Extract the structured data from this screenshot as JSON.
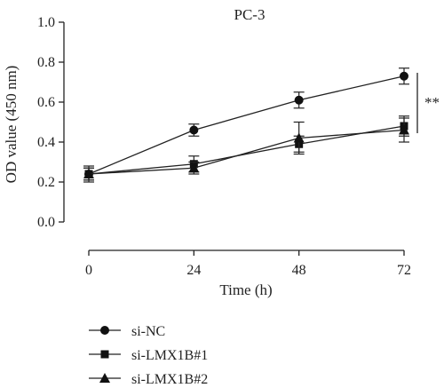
{
  "chart_data": {
    "type": "line",
    "title": "PC-3",
    "xlabel": "Time (h)",
    "ylabel": "OD value (450 nm)",
    "x": [
      0,
      24,
      48,
      72
    ],
    "x_ticks": [
      "0",
      "24",
      "48",
      "72"
    ],
    "xlim": [
      0,
      72
    ],
    "ylim": [
      0.0,
      1.0
    ],
    "y_ticks": [
      "0.0",
      "0.2",
      "0.4",
      "0.6",
      "0.8",
      "1.0"
    ],
    "grid": false,
    "legend_position": "bottom-left",
    "significance": "**",
    "series": [
      {
        "name": "si-NC",
        "marker": "circle",
        "values": [
          0.24,
          0.46,
          0.61,
          0.73
        ],
        "errors": [
          0.03,
          0.03,
          0.04,
          0.04
        ]
      },
      {
        "name": "si-LMX1B#1",
        "marker": "square",
        "values": [
          0.24,
          0.29,
          0.39,
          0.48
        ],
        "errors": [
          0.03,
          0.04,
          0.04,
          0.05
        ]
      },
      {
        "name": "si-LMX1B#2",
        "marker": "triangle",
        "values": [
          0.24,
          0.27,
          0.42,
          0.46
        ],
        "errors": [
          0.04,
          0.03,
          0.08,
          0.06
        ]
      }
    ]
  }
}
